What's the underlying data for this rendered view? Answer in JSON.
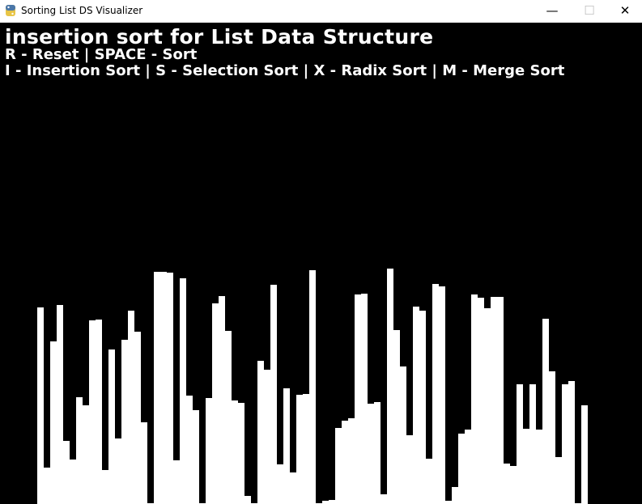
{
  "window": {
    "title": "Sorting List DS Visualizer",
    "minimize_glyph": "—",
    "maximize_glyph": "☐",
    "close_glyph": "✕",
    "icon": "python-icon"
  },
  "canvas": {
    "background": "#000000",
    "text_color": "#ffffff",
    "bar_color": "#ffffff"
  },
  "header": {
    "title": "insertion sort for List Data Structure",
    "controls_line1": "R - Reset | SPACE - Sort",
    "controls_line2": "I - Insertion Sort | S - Selection Sort | X - Radix Sort | M - Merge Sort"
  },
  "chart_data": {
    "type": "bar",
    "ylim": [
      0,
      292
    ],
    "values": [
      243,
      45,
      201,
      246,
      78,
      55,
      132,
      122,
      227,
      228,
      42,
      191,
      81,
      203,
      239,
      213,
      101,
      1,
      287,
      287,
      286,
      54,
      279,
      134,
      116,
      1,
      131,
      248,
      257,
      214,
      128,
      125,
      10,
      1,
      177,
      166,
      271,
      49,
      143,
      39,
      135,
      136,
      289,
      1,
      4,
      5,
      94,
      103,
      106,
      259,
      260,
      124,
      126,
      12,
      291,
      215,
      170,
      85,
      244,
      239,
      56,
      272,
      269,
      4,
      21,
      87,
      92,
      259,
      255,
      242,
      256,
      256,
      50,
      47,
      148,
      93,
      148,
      92,
      229,
      164,
      58,
      148,
      152,
      1,
      122
    ]
  }
}
